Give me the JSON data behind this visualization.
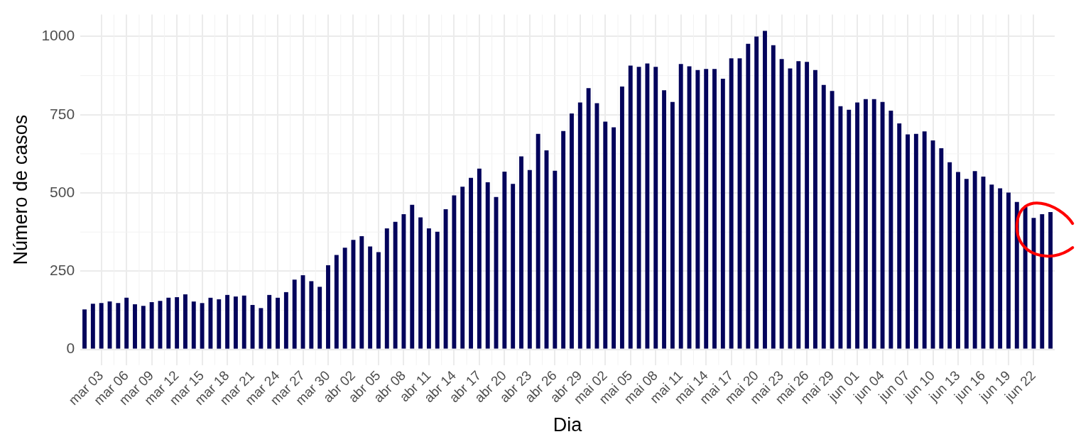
{
  "chart_data": {
    "type": "bar",
    "xlabel": "Dia",
    "ylabel": "Número de casos",
    "categories": [
      null,
      null,
      "mar 03",
      null,
      null,
      "mar 06",
      null,
      null,
      "mar 09",
      null,
      null,
      "mar 12",
      null,
      null,
      "mar 15",
      null,
      null,
      "mar 18",
      null,
      null,
      "mar 21",
      null,
      null,
      "mar 24",
      null,
      null,
      "mar 27",
      null,
      null,
      "mar 30",
      null,
      null,
      "abr 02",
      null,
      null,
      "abr 05",
      null,
      null,
      "abr 08",
      null,
      null,
      "abr 11",
      null,
      null,
      "abr 14",
      null,
      null,
      "abr 17",
      null,
      null,
      "abr 20",
      null,
      null,
      "abr 23",
      null,
      null,
      "abr 26",
      null,
      null,
      "abr 29",
      null,
      null,
      "mai 02",
      null,
      null,
      "mai 05",
      null,
      null,
      "mai 08",
      null,
      null,
      "mai 11",
      null,
      null,
      "mai 14",
      null,
      null,
      "mai 17",
      null,
      null,
      "mai 20",
      null,
      null,
      "mai 23",
      null,
      null,
      "mai 26",
      null,
      null,
      "mai 29",
      null,
      null,
      "jun 01",
      null,
      null,
      "jun 04",
      null,
      null,
      "jun 07",
      null,
      null,
      "jun 10",
      null,
      null,
      "jun 13",
      null,
      null,
      "jun 16",
      null,
      null,
      "jun 19",
      null,
      null,
      "jun 22",
      null,
      null
    ],
    "values": [
      128,
      146,
      148,
      153,
      148,
      165,
      144,
      139,
      151,
      155,
      165,
      167,
      176,
      153,
      148,
      165,
      160,
      174,
      169,
      172,
      142,
      132,
      174,
      165,
      183,
      223,
      237,
      218,
      200,
      269,
      302,
      325,
      350,
      362,
      329,
      311,
      387,
      408,
      432,
      462,
      422,
      387,
      376,
      448,
      492,
      520,
      548,
      578,
      534,
      487,
      568,
      529,
      617,
      573,
      689,
      636,
      571,
      698,
      754,
      789,
      835,
      787,
      728,
      710,
      840,
      907,
      903,
      914,
      903,
      828,
      791,
      912,
      905,
      893,
      896,
      896,
      865,
      930,
      930,
      977,
      1000,
      1018,
      972,
      928,
      898,
      921,
      919,
      893,
      845,
      826,
      777,
      766,
      789,
      800,
      800,
      791,
      763,
      722,
      687,
      689,
      697,
      668,
      643,
      598,
      567,
      545,
      570,
      552,
      527,
      515,
      501,
      471,
      455,
      420,
      432,
      439
    ],
    "color": "#03035b",
    "ylim": [
      -50,
      1070
    ],
    "yticks": [
      0,
      250,
      500,
      750,
      1000
    ],
    "grid": true
  }
}
